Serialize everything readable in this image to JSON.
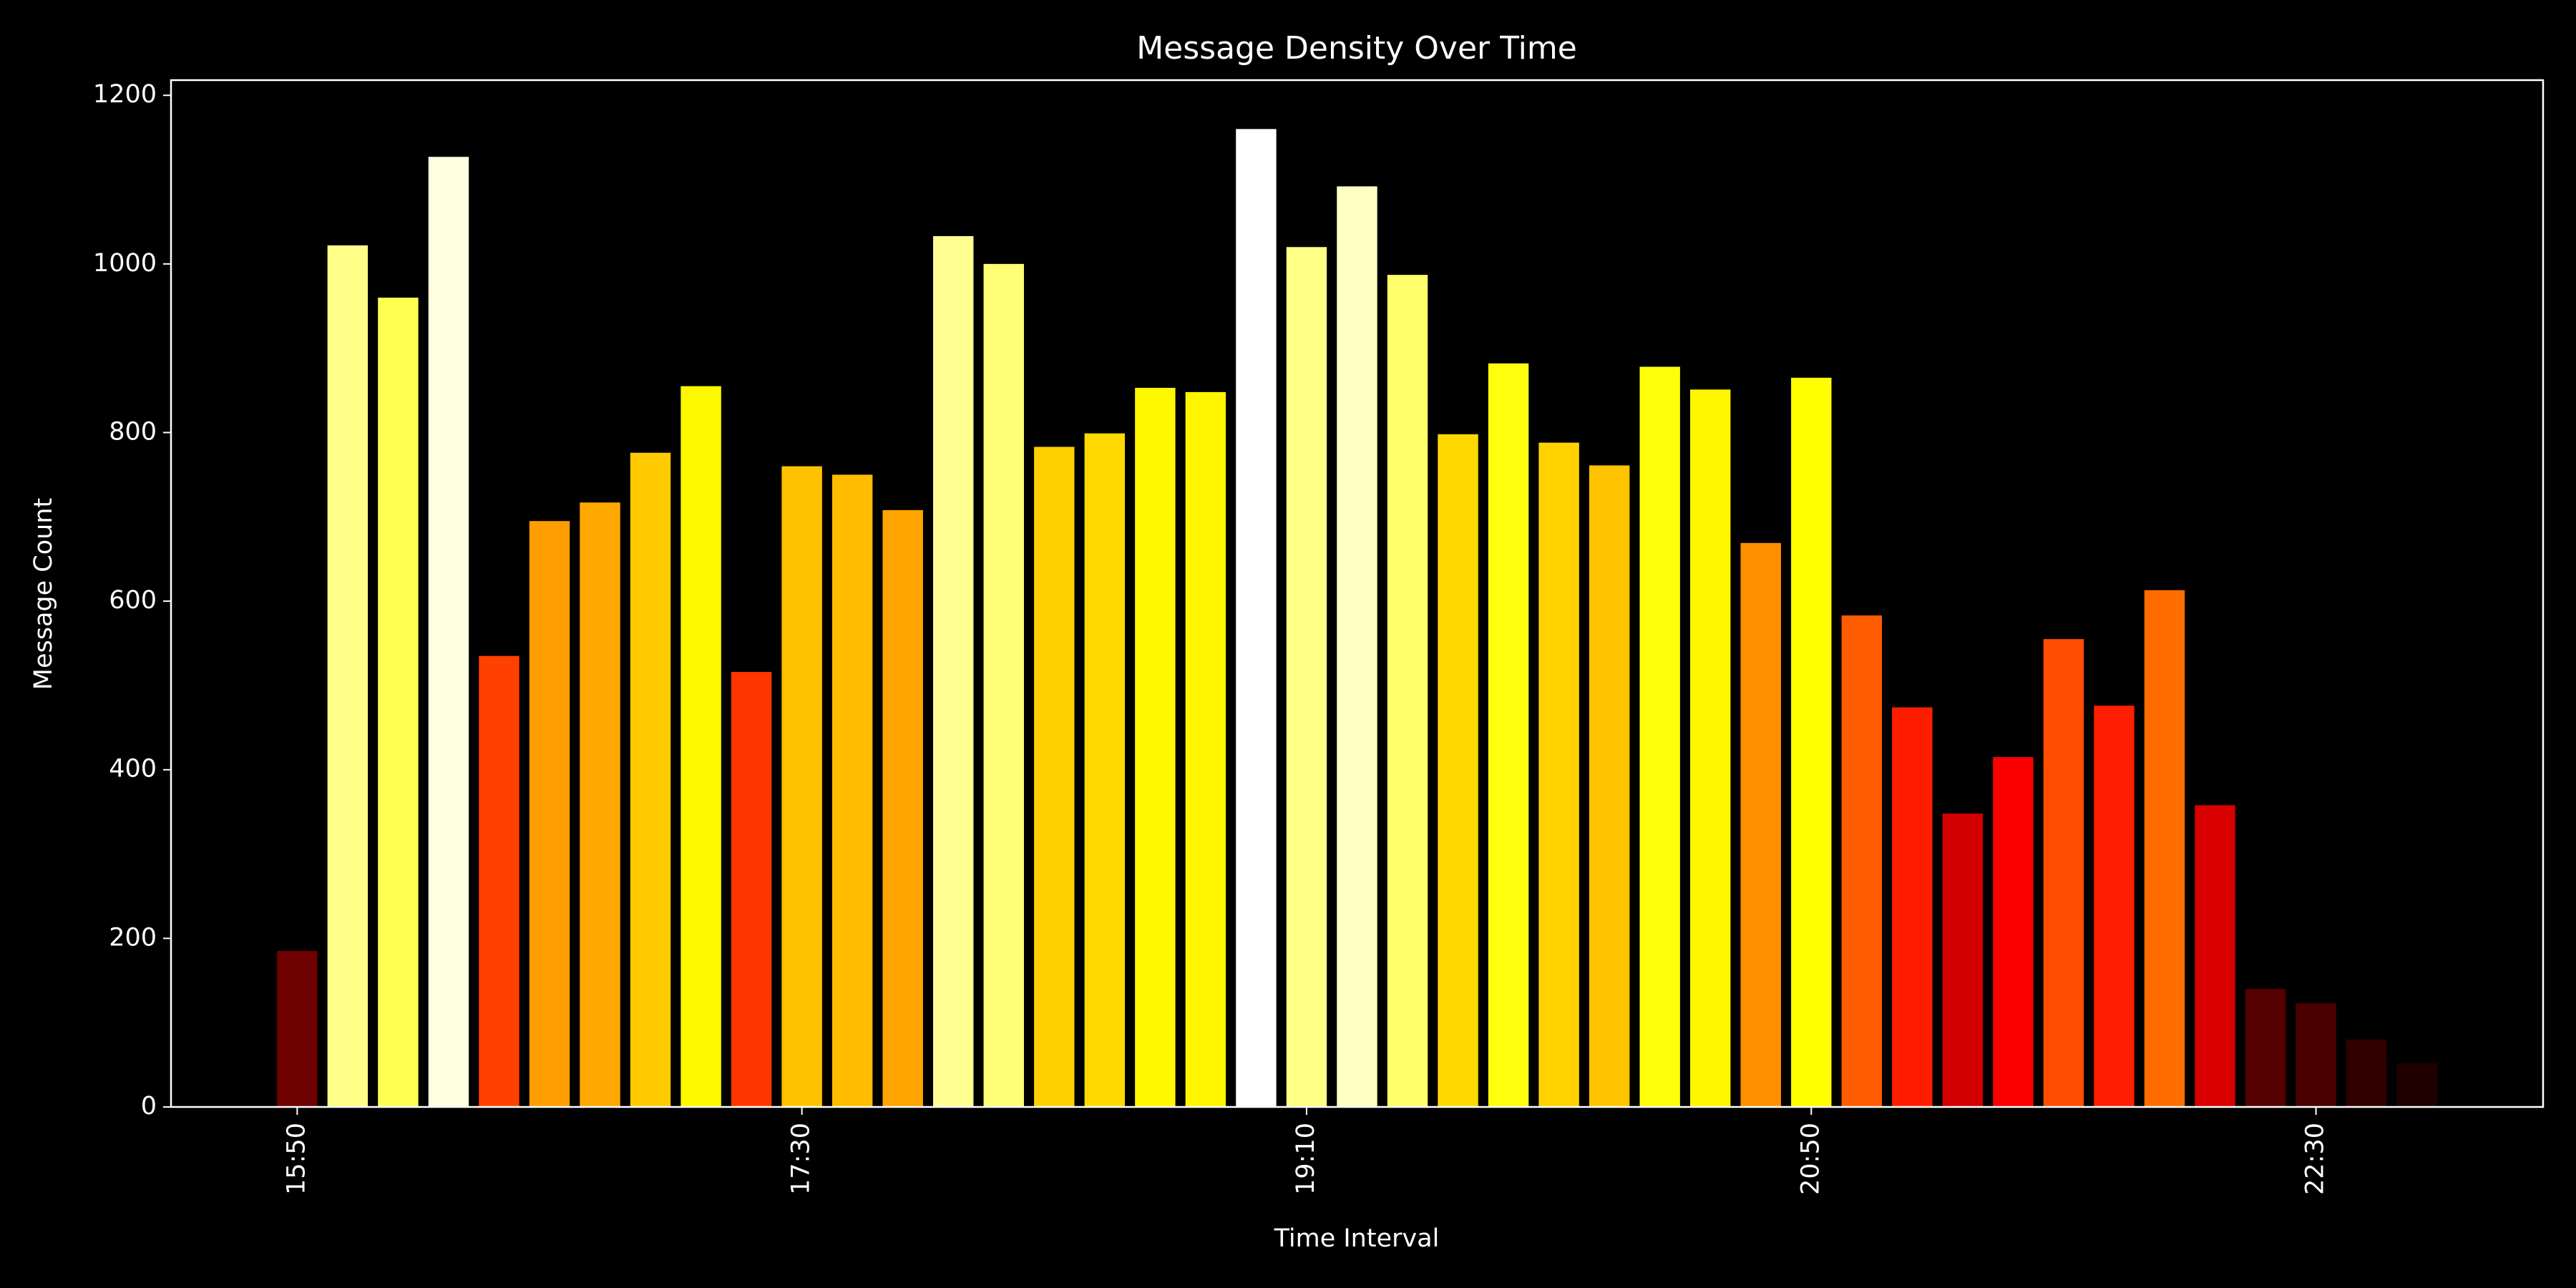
{
  "chart_data": {
    "type": "bar",
    "title": "Message Density Over Time",
    "x_label": "Time Interval",
    "y_label": "Message Count",
    "categories": [
      "15:50",
      null,
      null,
      null,
      null,
      null,
      null,
      null,
      null,
      null,
      "17:30",
      null,
      null,
      null,
      null,
      null,
      null,
      null,
      null,
      null,
      "19:10",
      null,
      null,
      null,
      null,
      null,
      null,
      null,
      null,
      null,
      "20:50",
      null,
      null,
      null,
      null,
      null,
      null,
      null,
      null,
      null,
      "22:30",
      null,
      null
    ],
    "values": [
      185,
      1022,
      960,
      1127,
      535,
      695,
      717,
      776,
      855,
      516,
      760,
      750,
      708,
      1033,
      1000,
      783,
      799,
      853,
      848,
      1160,
      1020,
      1092,
      987,
      798,
      882,
      788,
      761,
      878,
      851,
      669,
      865,
      583,
      474,
      348,
      415,
      555,
      476,
      613,
      358,
      140,
      123,
      80,
      52
    ],
    "colormap": "hot",
    "ylim": [
      0,
      1218
    ],
    "yticks": [
      0,
      200,
      400,
      600,
      800,
      1000,
      1200
    ],
    "grid": false
  }
}
